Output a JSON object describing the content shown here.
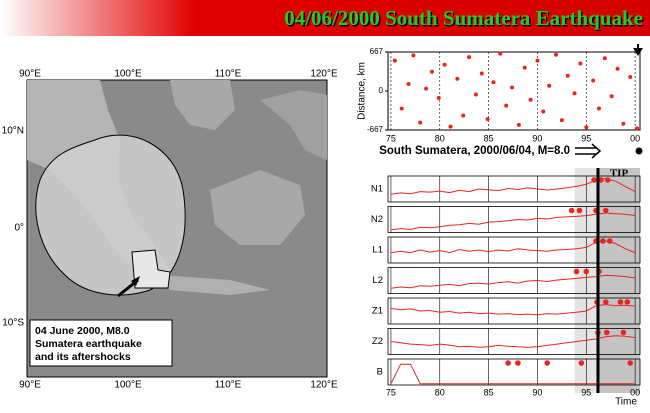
{
  "banner": {
    "title": "04/06/2000 South Sumatera Earthquake"
  },
  "map": {
    "lon_labels": [
      "90°E",
      "100°E",
      "110°E",
      "120°E"
    ],
    "lat_labels": [
      "10°N",
      "0°",
      "10°S"
    ],
    "caption": [
      "04 June 2000, M8.0",
      "Sumatera earthquake",
      "and its aftershocks"
    ]
  },
  "chart_data": [
    {
      "type": "scatter",
      "ylabel": "Distance, km",
      "color": "#e8261e",
      "x": [
        75.4,
        76.1,
        76.8,
        77.3,
        78.0,
        78.6,
        79.2,
        79.9,
        80.5,
        81.1,
        81.8,
        82.4,
        83.0,
        83.7,
        84.3,
        84.9,
        85.5,
        86.2,
        86.8,
        87.4,
        88.1,
        88.7,
        89.3,
        90.0,
        90.6,
        91.2,
        91.9,
        92.5,
        93.1,
        93.8,
        94.4,
        95.0,
        95.7,
        96.3,
        96.9,
        97.6,
        98.2,
        98.8,
        99.5,
        100.2
      ],
      "values": [
        520,
        -300,
        120,
        610,
        -540,
        40,
        330,
        -120,
        450,
        -610,
        210,
        -420,
        580,
        -60,
        300,
        -480,
        150,
        640,
        -250,
        60,
        -580,
        400,
        -150,
        520,
        -350,
        90,
        620,
        -500,
        260,
        -40,
        470,
        -620,
        180,
        -300,
        560,
        -90,
        380,
        -560,
        240,
        -640
      ],
      "xlim": [
        74.7,
        100.5
      ],
      "ylim": [
        -667,
        667
      ],
      "xticks": [
        75,
        80,
        85,
        90,
        95,
        {
          "value": 100,
          "label": "00"
        }
      ],
      "yticks": [
        667,
        0,
        -667
      ]
    },
    {
      "type": "line",
      "title": "South Sumatera, 2000/06/04, M=8.0",
      "annotation": "TIP",
      "xlabel": "Time",
      "x": [
        75,
        76,
        77,
        78,
        79,
        80,
        81,
        82,
        83,
        84,
        85,
        86,
        87,
        88,
        89,
        90,
        91,
        92,
        93,
        94,
        95,
        96,
        97,
        98,
        99,
        100
      ],
      "xlim": [
        74.7,
        100.5
      ],
      "xticks": [
        75,
        80,
        85,
        90,
        95,
        {
          "value": 100,
          "label": "00"
        }
      ],
      "ylim": [
        0,
        1
      ],
      "grid": true,
      "tip_interval": [
        96.2,
        100.5
      ],
      "prealert_interval": [
        93.8,
        96.2
      ],
      "event_x": 100.4,
      "series": [
        {
          "name": "N1",
          "color": "#e8261e",
          "values": [
            0.3,
            0.35,
            0.32,
            0.4,
            0.38,
            0.42,
            0.36,
            0.45,
            0.4,
            0.5,
            0.47,
            0.44,
            0.52,
            0.48,
            0.55,
            0.5,
            0.46,
            0.5,
            0.55,
            0.6,
            0.68,
            0.85,
            0.9,
            0.8,
            0.6,
            0.4
          ],
          "alarms": [
            95.8,
            96.5,
            97.2
          ]
        },
        {
          "name": "N2",
          "color": "#e8261e",
          "values": [
            0.1,
            0.15,
            0.12,
            0.2,
            0.18,
            0.22,
            0.28,
            0.3,
            0.35,
            0.32,
            0.4,
            0.42,
            0.45,
            0.5,
            0.48,
            0.55,
            0.52,
            0.58,
            0.6,
            0.62,
            0.65,
            0.7,
            0.75,
            0.72,
            0.7,
            0.65
          ],
          "alarms": [
            93.5,
            94.3,
            96.0,
            97.0
          ]
        },
        {
          "name": "L1",
          "color": "#e8261e",
          "values": [
            0.4,
            0.45,
            0.4,
            0.5,
            0.42,
            0.48,
            0.4,
            0.52,
            0.45,
            0.5,
            0.44,
            0.5,
            0.46,
            0.55,
            0.5,
            0.48,
            0.45,
            0.5,
            0.52,
            0.55,
            0.6,
            0.8,
            0.85,
            0.75,
            0.55,
            0.4
          ],
          "alarms": [
            96.0,
            96.7,
            97.4
          ]
        },
        {
          "name": "L2",
          "color": "#e8261e",
          "values": [
            0.2,
            0.25,
            0.22,
            0.3,
            0.28,
            0.32,
            0.35,
            0.3,
            0.38,
            0.4,
            0.36,
            0.42,
            0.45,
            0.4,
            0.48,
            0.5,
            0.46,
            0.52,
            0.55,
            0.58,
            0.62,
            0.65,
            0.7,
            0.68,
            0.65,
            0.6
          ],
          "alarms": [
            94.0,
            95.0,
            96.3
          ]
        },
        {
          "name": "Z1",
          "color": "#e8261e",
          "values": [
            0.6,
            0.55,
            0.58,
            0.5,
            0.52,
            0.45,
            0.48,
            0.42,
            0.45,
            0.4,
            0.42,
            0.38,
            0.4,
            0.36,
            0.38,
            0.35,
            0.4,
            0.38,
            0.42,
            0.45,
            0.5,
            0.7,
            0.75,
            0.7,
            0.72,
            0.68
          ],
          "alarms": [
            96.1,
            97.0,
            98.5,
            99.2
          ]
        },
        {
          "name": "Z2",
          "color": "#e8261e",
          "values": [
            0.5,
            0.45,
            0.4,
            0.38,
            0.35,
            0.4,
            0.36,
            0.3,
            0.32,
            0.28,
            0.3,
            0.35,
            0.32,
            0.3,
            0.28,
            0.3,
            0.35,
            0.4,
            0.45,
            0.5,
            0.55,
            0.6,
            0.68,
            0.72,
            0.7,
            0.65
          ],
          "alarms": [
            96.2,
            97.1,
            98.8
          ]
        },
        {
          "name": "B",
          "color": "#e8261e",
          "values": [
            0.05,
            0.8,
            0.8,
            0.05,
            0.05,
            0.05,
            0.05,
            0.05,
            0.05,
            0.05,
            0.05,
            0.05,
            0.05,
            0.05,
            0.05,
            0.05,
            0.05,
            0.05,
            0.05,
            0.05,
            0.05,
            0.05,
            0.05,
            0.05,
            0.05,
            0.05
          ],
          "alarms": [
            87.0,
            88.0,
            91.0,
            94.5,
            99.5
          ]
        }
      ]
    }
  ]
}
